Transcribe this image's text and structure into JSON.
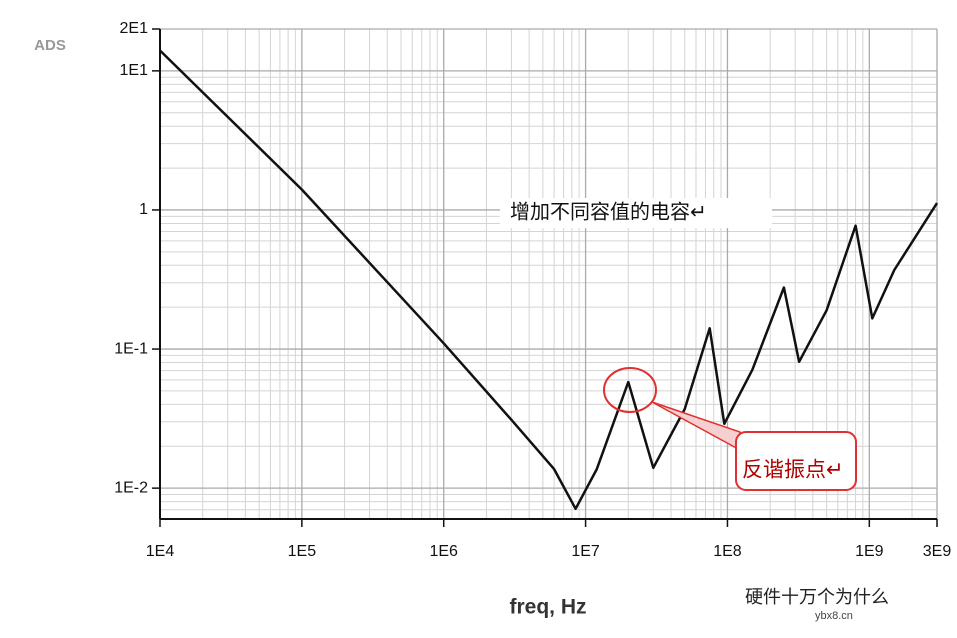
{
  "chart_data": {
    "type": "line",
    "log_x": true,
    "log_y": true,
    "grid": true,
    "minor_grid": true,
    "color": "#111111",
    "software": "ADS",
    "xlabel": "freq, Hz",
    "x": [
      10000,
      100000,
      1000000,
      3000000,
      6000000,
      8500000,
      12000000,
      20000000,
      30000000,
      50000000,
      75000000,
      95000000,
      150000000,
      250000000,
      320000000,
      500000000,
      800000000,
      1050000000,
      1500000000,
      3000000000
    ],
    "values": [
      14,
      1.4,
      0.11,
      0.031,
      0.0137,
      0.0071,
      0.0137,
      0.058,
      0.014,
      0.037,
      0.141,
      0.029,
      0.071,
      0.277,
      0.081,
      0.19,
      0.77,
      0.166,
      0.37,
      1.12
    ],
    "xlim": [
      10000,
      3000000000
    ],
    "xticks": [
      {
        "value": 10000,
        "label": "1E4"
      },
      {
        "value": 100000,
        "label": "1E5"
      },
      {
        "value": 1000000,
        "label": "1E6"
      },
      {
        "value": 10000000,
        "label": "1E7"
      },
      {
        "value": 100000000,
        "label": "1E8"
      },
      {
        "value": 1000000000,
        "label": "1E9"
      },
      {
        "value": 3000000000,
        "label": "3E9"
      }
    ],
    "ylim": [
      0.006,
      20
    ],
    "yticks": [
      {
        "value": 0.01,
        "label": "1E-2"
      },
      {
        "value": 0.1,
        "label": "1E-1"
      },
      1,
      {
        "value": 10,
        "label": "1E1"
      },
      {
        "value": 20,
        "label": "2E1"
      }
    ],
    "annotations": [
      "增加不同容值的电容↵",
      "反谐振点↵"
    ],
    "watermark": [
      "硬件十万个为什么",
      "ybx8.cn"
    ]
  }
}
